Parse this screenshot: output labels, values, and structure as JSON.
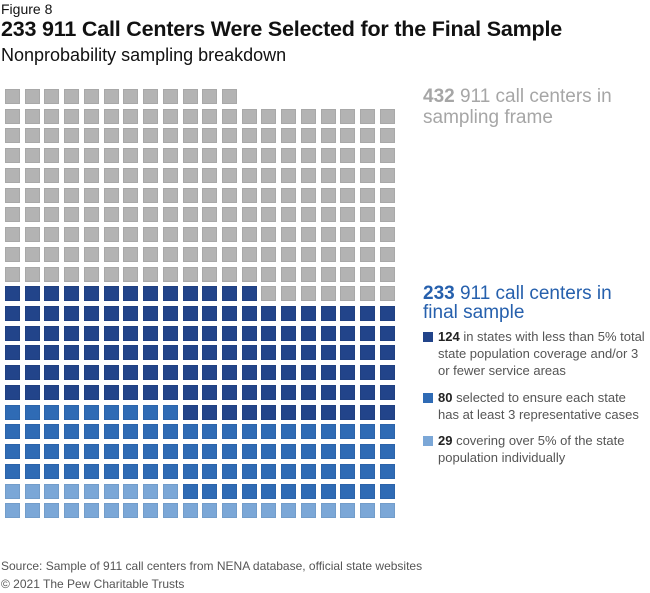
{
  "header": {
    "figure_label": "Figure 8",
    "title": "233 911 Call Centers Were Selected for the Final Sample",
    "subtitle": "Nonprobability sampling breakdown"
  },
  "colors": {
    "frame": "#b3b3b3",
    "dark_blue": "#22448a",
    "medium_blue": "#2f6bb5",
    "light_blue": "#7ba7d7",
    "final_label": "#2660ad",
    "frame_label": "#a6a6a6"
  },
  "chart_data": {
    "type": "waffle",
    "title": "233 911 Call Centers Were Selected for the Final Sample",
    "subtitle": "Nonprobability sampling breakdown",
    "columns": 20,
    "fill_order": "bottom-left upward",
    "total": 432,
    "selected_total": 233,
    "series": [
      {
        "name": "124 in states with less than 5% total state population coverage and/or 3 or fewer service areas",
        "value": 124,
        "color": "#22448a"
      },
      {
        "name": "80 selected to ensure each state has at least 3 representative cases",
        "value": 80,
        "color": "#2f6bb5"
      },
      {
        "name": "29 covering over 5% of the state population individually",
        "value": 29,
        "color": "#7ba7d7"
      },
      {
        "name": "Not selected (remaining in sampling frame)",
        "value": 199,
        "color": "#b3b3b3"
      }
    ]
  },
  "annotations": {
    "frame": {
      "number": "432",
      "text": " 911 call centers in sampling frame"
    },
    "final": {
      "number": "233",
      "text": " 911 call centers in final sample"
    }
  },
  "legend": [
    {
      "number": "124",
      "text": " in states with less than 5% total state population coverage and/or 3 or fewer service areas"
    },
    {
      "number": "80",
      "text": " selected to ensure each state has at least 3 representative cases"
    },
    {
      "number": "29",
      "text": " covering over 5% of the state population individually"
    }
  ],
  "footer": {
    "source": "Source: Sample of 911 call centers from NENA database, official state websites",
    "copyright": "© 2021 The Pew Charitable Trusts"
  }
}
